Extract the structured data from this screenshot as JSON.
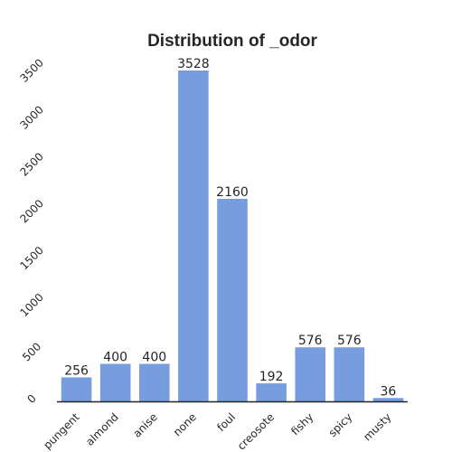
{
  "chart_data": {
    "type": "bar",
    "title": "Distribution of _odor",
    "xlabel": "",
    "ylabel": "",
    "categories": [
      "pungent",
      "almond",
      "anise",
      "none",
      "foul",
      "creosote",
      "fishy",
      "spicy",
      "musty"
    ],
    "values": [
      256,
      400,
      400,
      3528,
      2160,
      192,
      576,
      576,
      36
    ],
    "data_labels": [
      "256",
      "400",
      "400",
      "3528",
      "2160",
      "192",
      "576",
      "576",
      "36"
    ],
    "yticks": [
      0,
      500,
      1000,
      1500,
      2000,
      2500,
      3000,
      3500
    ],
    "ylim": [
      0,
      3600
    ],
    "grid": false,
    "legend": "none",
    "bar_color": "#779ddf"
  }
}
